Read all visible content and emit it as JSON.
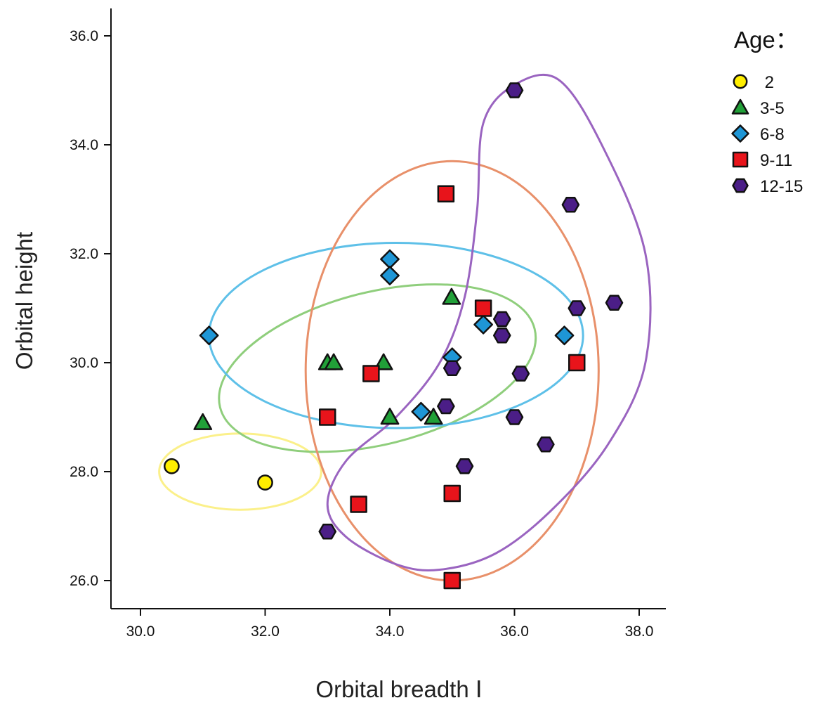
{
  "chart_data": {
    "type": "scatter",
    "xlabel": "Orbital breadth Ⅰ",
    "ylabel": "Orbital height",
    "xlim": [
      29.6,
      38.4
    ],
    "ylim": [
      25.4,
      36.5
    ],
    "x_ticks": [
      {
        "value": 30,
        "label": "30.0"
      },
      {
        "value": 32,
        "label": "32.0"
      },
      {
        "value": 34,
        "label": "34.0"
      },
      {
        "value": 36,
        "label": "36.0"
      },
      {
        "value": 38,
        "label": "38.0"
      }
    ],
    "y_ticks": [
      {
        "value": 26,
        "label": "26.0"
      },
      {
        "value": 28,
        "label": "28.0"
      },
      {
        "value": 30,
        "label": "30.0"
      },
      {
        "value": 32,
        "label": "32.0"
      },
      {
        "value": 34,
        "label": "34.0"
      },
      {
        "value": 36,
        "label": "36.0"
      }
    ],
    "grid": false,
    "legend": {
      "title": "Age：",
      "position": "top-right"
    },
    "series": [
      {
        "name": "2",
        "marker": "circle",
        "color": "#ffee00",
        "ellipse_color": "#fbf08a",
        "points": [
          [
            30.5,
            28.1
          ],
          [
            32.0,
            27.8
          ]
        ],
        "region": {
          "center": [
            31.6,
            28.0
          ],
          "radius": [
            1.3,
            0.7
          ],
          "rotation_deg": 0
        }
      },
      {
        "name": "3-5",
        "marker": "triangle",
        "color": "#21a038",
        "ellipse_color": "#8fce7c",
        "points": [
          [
            31.0,
            28.9
          ],
          [
            33.0,
            30.0
          ],
          [
            33.1,
            30.0
          ],
          [
            33.9,
            30.0
          ],
          [
            34.0,
            29.0
          ],
          [
            34.7,
            29.0
          ],
          [
            34.99,
            31.2
          ]
        ],
        "region": {
          "center": [
            33.8,
            29.9
          ],
          "radius": [
            2.6,
            1.4
          ],
          "rotation_deg": 14
        }
      },
      {
        "name": "6-8",
        "marker": "diamond",
        "color": "#1e96d6",
        "ellipse_color": "#5ec0e8",
        "points": [
          [
            31.1,
            30.5
          ],
          [
            34.0,
            31.9
          ],
          [
            34.0,
            31.6
          ],
          [
            34.5,
            29.1
          ],
          [
            35.0,
            30.1
          ],
          [
            35.5,
            30.7
          ],
          [
            36.8,
            30.5
          ]
        ],
        "region": {
          "center": [
            34.1,
            30.5
          ],
          "radius": [
            3.0,
            1.7
          ],
          "rotation_deg": 0
        }
      },
      {
        "name": "9-11",
        "marker": "square",
        "color": "#e8141b",
        "ellipse_color": "#e8906a",
        "points": [
          [
            34.9,
            33.1
          ],
          [
            33.7,
            29.8
          ],
          [
            33.0,
            29.0
          ],
          [
            35.5,
            31.0
          ],
          [
            37.0,
            30.0
          ],
          [
            35.0,
            27.6
          ],
          [
            33.5,
            27.4
          ],
          [
            35.0,
            26.0
          ]
        ],
        "region": {
          "center": [
            35.0,
            29.85
          ],
          "radius": [
            2.35,
            3.85
          ],
          "rotation_deg": 0
        }
      },
      {
        "name": "12-15",
        "marker": "hexagon",
        "color": "#4b1e87",
        "ellipse_color": "#9a64c0",
        "points": [
          [
            36.0,
            35.0
          ],
          [
            36.9,
            32.9
          ],
          [
            37.0,
            31.0
          ],
          [
            37.6,
            31.1
          ],
          [
            35.8,
            30.8
          ],
          [
            35.8,
            30.5
          ],
          [
            35.0,
            29.9
          ],
          [
            36.1,
            29.8
          ],
          [
            34.9,
            29.2
          ],
          [
            36.0,
            29.0
          ],
          [
            36.5,
            28.5
          ],
          [
            35.2,
            28.1
          ],
          [
            33.0,
            26.9
          ]
        ],
        "region": {
          "curve": [
            [
              35.5,
              34.4
            ],
            [
              36.0,
              35.1
            ],
            [
              36.7,
              35.2
            ],
            [
              37.4,
              34.0
            ],
            [
              38.1,
              32.0
            ],
            [
              38.1,
              30.0
            ],
            [
              37.5,
              28.5
            ],
            [
              36.6,
              27.3
            ],
            [
              35.7,
              26.5
            ],
            [
              34.8,
              26.2
            ],
            [
              34.1,
              26.3
            ],
            [
              33.3,
              26.8
            ],
            [
              33.0,
              27.4
            ],
            [
              33.3,
              28.2
            ],
            [
              34.1,
              29.0
            ],
            [
              34.8,
              30.0
            ],
            [
              35.2,
              31.2
            ],
            [
              35.4,
              32.8
            ]
          ]
        }
      }
    ]
  }
}
